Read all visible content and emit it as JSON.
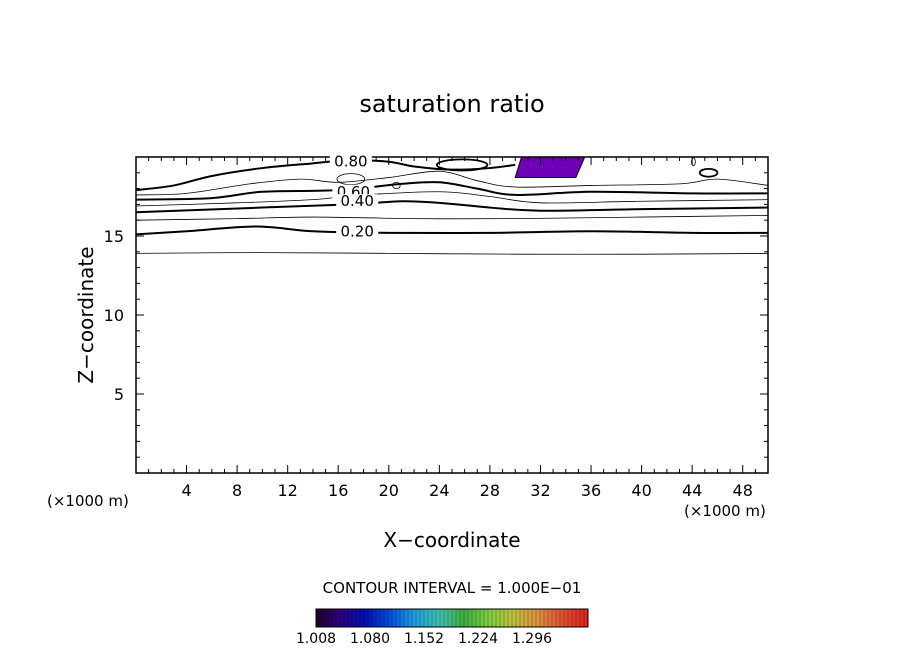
{
  "chart_data": {
    "type": "contour",
    "title": "saturation ratio",
    "xlabel": "X−coordinate",
    "ylabel": "Z−coordinate",
    "x_unit_left": "(×1000 m)",
    "x_unit_right": "(×1000 m)",
    "xlim": [
      0,
      50
    ],
    "ylim": [
      0,
      20
    ],
    "x_ticks": [
      4,
      8,
      12,
      16,
      20,
      24,
      28,
      32,
      36,
      40,
      44,
      48
    ],
    "y_ticks": [
      5,
      10,
      15
    ],
    "contour_interval_label": "CONTOUR INTERVAL = 1.000E−01",
    "contour_labels": [
      {
        "text": "0.80",
        "x": 17,
        "z": 19.7
      },
      {
        "text": "0.60",
        "x": 17.2,
        "z": 17.8
      },
      {
        "text": "0.40",
        "x": 17.5,
        "z": 17.2
      },
      {
        "text": "0.20",
        "x": 17.5,
        "z": 15.3
      }
    ],
    "contours": [
      {
        "level": 0.1,
        "points": [
          [
            0,
            13.9
          ],
          [
            10,
            13.95
          ],
          [
            20,
            13.9
          ],
          [
            30,
            13.85
          ],
          [
            40,
            13.85
          ],
          [
            50,
            13.9
          ]
        ]
      },
      {
        "level": 0.2,
        "points": [
          [
            0,
            15.1
          ],
          [
            4,
            15.3
          ],
          [
            9.5,
            15.6
          ],
          [
            14,
            15.3
          ],
          [
            20,
            15.2
          ],
          [
            28,
            15.2
          ],
          [
            36,
            15.3
          ],
          [
            44,
            15.2
          ],
          [
            50,
            15.2
          ]
        ]
      },
      {
        "level": 0.3,
        "points": [
          [
            0,
            16.0
          ],
          [
            8,
            16.1
          ],
          [
            14,
            16.2
          ],
          [
            22,
            16.1
          ],
          [
            30,
            16.1
          ],
          [
            40,
            16.2
          ],
          [
            50,
            16.3
          ]
        ]
      },
      {
        "level": 0.4,
        "points": [
          [
            0,
            16.5
          ],
          [
            10,
            16.8
          ],
          [
            17,
            17.0
          ],
          [
            21,
            17.2
          ],
          [
            24,
            17.1
          ],
          [
            28,
            16.8
          ],
          [
            32,
            16.6
          ],
          [
            40,
            16.7
          ],
          [
            50,
            16.8
          ]
        ]
      },
      {
        "level": 0.5,
        "points": [
          [
            0,
            16.9
          ],
          [
            8,
            17.1
          ],
          [
            14,
            17.3
          ],
          [
            18,
            17.6
          ],
          [
            24,
            17.8
          ],
          [
            28,
            17.5
          ],
          [
            32,
            17.1
          ],
          [
            40,
            17.2
          ],
          [
            50,
            17.3
          ]
        ]
      },
      {
        "level": 0.6,
        "points": [
          [
            0,
            17.3
          ],
          [
            6,
            17.4
          ],
          [
            10,
            17.8
          ],
          [
            16,
            17.9
          ],
          [
            21,
            18.3
          ],
          [
            24,
            18.4
          ],
          [
            27,
            18.0
          ],
          [
            30,
            17.6
          ],
          [
            36,
            17.8
          ],
          [
            44,
            17.7
          ],
          [
            50,
            17.7
          ]
        ]
      },
      {
        "level": 0.7,
        "points": [
          [
            0,
            17.6
          ],
          [
            4,
            17.7
          ],
          [
            9,
            18.3
          ],
          [
            13,
            18.6
          ],
          [
            16,
            18.4
          ],
          [
            20,
            18.7
          ],
          [
            24,
            19.1
          ],
          [
            27,
            18.5
          ],
          [
            30,
            18.1
          ],
          [
            36,
            18.2
          ],
          [
            43,
            18.3
          ],
          [
            46,
            18.6
          ],
          [
            50,
            18.2
          ]
        ]
      },
      {
        "level": 0.8,
        "points": [
          [
            0,
            17.9
          ],
          [
            3,
            18.2
          ],
          [
            6,
            18.8
          ],
          [
            10,
            19.3
          ],
          [
            14,
            19.6
          ],
          [
            17,
            19.8
          ],
          [
            20,
            19.7
          ],
          [
            22,
            19.4
          ],
          [
            25,
            19.2
          ],
          [
            28,
            19.3
          ],
          [
            30,
            19.5
          ]
        ]
      }
    ],
    "closed_contours": [
      {
        "level": 0.7,
        "cx": 17,
        "cz": 18.6,
        "rx": 1.1,
        "rz": 0.35
      },
      {
        "level": 0.7,
        "cx": 20.6,
        "cz": 18.2,
        "rx": 0.3,
        "rz": 0.2
      },
      {
        "level": 0.8,
        "cx": 25.8,
        "cz": 19.5,
        "rx": 2.0,
        "rz": 0.35
      },
      {
        "level": 0.6,
        "cx": 45.3,
        "cz": 19.0,
        "rx": 0.7,
        "rz": 0.25
      },
      {
        "level": 0.9,
        "cx": 44.1,
        "cz": 19.7,
        "rx": 0.15,
        "rz": 0.25
      }
    ],
    "shaded_region": {
      "color": "#7000b8",
      "points": [
        [
          30.5,
          20
        ],
        [
          35.5,
          20
        ],
        [
          34.8,
          18.7
        ],
        [
          30.0,
          18.7
        ]
      ]
    },
    "colorbar": {
      "ticks": [
        "1.008",
        "1.080",
        "1.152",
        "1.224",
        "1.296"
      ],
      "colors": [
        "#200028",
        "#2a0080",
        "#0010b0",
        "#0050e0",
        "#20a0e0",
        "#40c0b0",
        "#40b040",
        "#80d040",
        "#c0c040",
        "#e09040",
        "#e05030",
        "#e02020"
      ]
    }
  }
}
